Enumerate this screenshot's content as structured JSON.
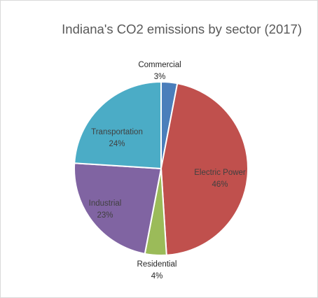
{
  "chart_data": {
    "type": "pie",
    "title": "Indiana's CO2 emissions by sector (2017)",
    "categories": [
      "Commercial",
      "Electric Power",
      "Residential",
      "Industrial",
      "Transportation"
    ],
    "values": [
      3,
      46,
      4,
      23,
      24
    ],
    "value_labels": [
      "3%",
      "46%",
      "4%",
      "23%",
      "24%"
    ],
    "colors": [
      "#4a7ebb",
      "#c0504d",
      "#9bbb59",
      "#8064a2",
      "#4bacc6"
    ],
    "legend": "none",
    "start_angle_deg": 0,
    "direction": "clockwise"
  }
}
